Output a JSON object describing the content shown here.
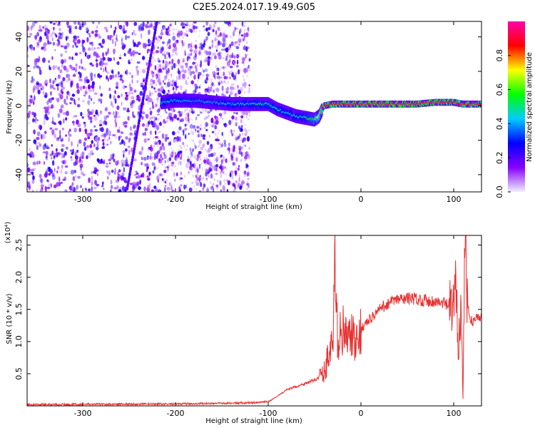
{
  "title": "C2E5.2024.017.19.49.G05",
  "colors": {
    "snr_line": "#e83030",
    "frame": "#000000"
  },
  "chart_data": [
    {
      "type": "heatmap",
      "xlabel": "Height of straight line (km)",
      "ylabel": "Frequency (Hz)",
      "xlim": [
        -360,
        130
      ],
      "ylim": [
        -50,
        49
      ],
      "x_ticks": [
        -300,
        -200,
        -100,
        0,
        100
      ],
      "y_ticks": [
        -40,
        -20,
        0,
        20,
        40
      ],
      "colorbar": {
        "label": "Normalized spectral amplitude",
        "range": [
          0.0,
          1.0
        ],
        "ticks": [
          "0.0",
          "0.2",
          "0.4",
          "0.6",
          "0.8"
        ],
        "colormap": [
          "#f0f0ff",
          "#8800ff",
          "#0000ff",
          "#00ccff",
          "#00ff00",
          "#ffff00",
          "#ff0000",
          "#ff00aa"
        ]
      },
      "ridge": {
        "x": [
          -215,
          -200,
          -180,
          -160,
          -140,
          -120,
          -110,
          -100,
          -90,
          -80,
          -70,
          -60,
          -50,
          -45,
          -40,
          -30,
          -20,
          -10,
          0,
          20,
          40,
          60,
          80,
          100,
          110,
          120,
          130
        ],
        "freq": [
          2,
          3,
          3,
          2,
          1,
          1,
          1,
          1,
          -2,
          -4,
          -6,
          -7,
          -8,
          -6,
          0,
          1,
          1,
          1,
          1,
          1,
          1,
          1,
          2,
          2,
          1,
          1,
          1
        ],
        "amplitude": [
          0.45,
          0.45,
          0.4,
          0.4,
          0.45,
          0.45,
          0.5,
          0.5,
          0.5,
          0.45,
          0.45,
          0.5,
          0.6,
          0.7,
          0.85,
          0.9,
          0.9,
          0.95,
          0.95,
          0.95,
          0.95,
          0.95,
          0.95,
          0.9,
          0.85,
          0.85,
          0.85
        ]
      }
    },
    {
      "type": "line",
      "xlabel": "Height of straight line (km)",
      "ylabel": "SNR (10 * v/v)",
      "y_multiplier": "(x10⁴)",
      "xlim": [
        -360,
        130
      ],
      "ylim": [
        0,
        26500
      ],
      "x_ticks": [
        -300,
        -200,
        -100,
        0,
        100
      ],
      "y_ticks": [
        0.5,
        1.0,
        1.5,
        2.0,
        2.5
      ],
      "y_tick_labels": [
        "0.5",
        "1.0",
        "1.5",
        "2.0",
        "2.5"
      ],
      "series": [
        {
          "x": [
            -360,
            -300,
            -200,
            -150,
            -110,
            -100,
            -90,
            -80,
            -70,
            -60,
            -50,
            -40,
            -35,
            -30,
            -28,
            -25,
            -20,
            -15,
            -10,
            -5,
            0,
            10,
            20,
            30,
            40,
            50,
            60,
            70,
            80,
            90,
            100,
            103,
            105,
            108,
            110,
            112,
            115,
            120,
            125,
            130
          ],
          "y": [
            200,
            250,
            300,
            400,
            500,
            700,
            1500,
            2500,
            3000,
            3500,
            4000,
            5000,
            8000,
            10000,
            21500,
            10000,
            12000,
            10000,
            11000,
            9000,
            12000,
            13500,
            15000,
            16000,
            16500,
            16700,
            16600,
            16400,
            16200,
            15900,
            15000,
            19000,
            9000,
            16000,
            1500,
            26500,
            15000,
            13000,
            13800,
            14000
          ]
        }
      ]
    }
  ]
}
